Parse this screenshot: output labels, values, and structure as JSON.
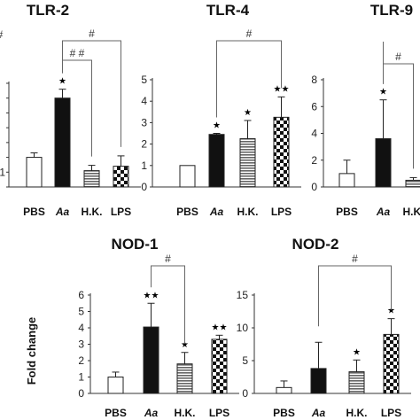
{
  "chart_data": [
    {
      "type": "bar",
      "title": "TLR-2",
      "categories": [
        "PBS",
        "Aa",
        "H.K.",
        "LPS"
      ],
      "values": [
        1.0,
        3.0,
        0.55,
        0.7
      ],
      "errors": [
        0.15,
        0.3,
        0.18,
        0.35
      ],
      "significance": [
        "",
        "★",
        "",
        ""
      ],
      "comparisons": [
        {
          "from": 1,
          "to": 2,
          "label": "# #"
        },
        {
          "from": 1,
          "to": 3,
          "label": "#"
        }
      ],
      "yticks": [
        "",
        "1",
        "",
        "",
        "",
        "",
        "",
        ""
      ],
      "ylim": [
        0,
        3.5
      ],
      "ylabel": ""
    },
    {
      "type": "bar",
      "title": "TLR-4",
      "categories": [
        "PBS",
        "Aa",
        "H.K.",
        "LPS"
      ],
      "values": [
        1.0,
        2.45,
        2.25,
        3.25
      ],
      "errors": [
        0.0,
        0.05,
        0.85,
        0.95
      ],
      "significance": [
        "",
        "★",
        "★",
        "★★"
      ],
      "comparisons": [
        {
          "from": 1,
          "to": 3,
          "label": "#"
        }
      ],
      "yticks": [
        "0",
        "1",
        "2",
        "3",
        "4",
        "5"
      ],
      "ylim": [
        0,
        5
      ],
      "ylabel": ""
    },
    {
      "type": "bar",
      "title": "TLR-9",
      "categories": [
        "PBS",
        "Aa",
        "H.K."
      ],
      "values": [
        1.0,
        3.6,
        0.5
      ],
      "errors": [
        1.0,
        2.9,
        0.2
      ],
      "significance": [
        "",
        "★",
        ""
      ],
      "comparisons": [
        {
          "from": 1,
          "to": 2,
          "label": "#"
        },
        {
          "from": 1,
          "to": 3,
          "label": "#"
        }
      ],
      "yticks": [
        "0",
        "2",
        "4",
        "6",
        "8"
      ],
      "ylim": [
        0,
        8
      ],
      "ylabel": ""
    },
    {
      "type": "bar",
      "title": "NOD-1",
      "categories": [
        "PBS",
        "Aa",
        "H.K.",
        "LPS"
      ],
      "values": [
        1.0,
        4.05,
        1.8,
        3.3
      ],
      "errors": [
        0.3,
        1.45,
        0.7,
        0.25
      ],
      "significance": [
        "",
        "★★",
        "★",
        "★★"
      ],
      "comparisons": [
        {
          "from": 1,
          "to": 2,
          "label": "#"
        }
      ],
      "yticks": [
        "0",
        "1",
        "2",
        "3",
        "4",
        "5",
        "6"
      ],
      "ylim": [
        0,
        6
      ],
      "ylabel": "Fold change"
    },
    {
      "type": "bar",
      "title": "NOD-2",
      "categories": [
        "PBS",
        "Aa",
        "H.K.",
        "LPS"
      ],
      "values": [
        0.9,
        3.8,
        3.3,
        9.0
      ],
      "errors": [
        1.0,
        4.0,
        1.8,
        2.4
      ],
      "significance": [
        "",
        "",
        "★",
        "★"
      ],
      "comparisons": [
        {
          "from": 1,
          "to": 3,
          "label": "#"
        }
      ],
      "yticks": [
        "0",
        "5",
        "10",
        "15"
      ],
      "ylim": [
        0,
        15
      ],
      "ylabel": ""
    }
  ],
  "colors": {
    "axis": "#333333",
    "bracket": "#666666",
    "bar_fill_solid": "#111111",
    "bar_fill_white": "#ffffff",
    "bar_stripe": "#666666"
  }
}
